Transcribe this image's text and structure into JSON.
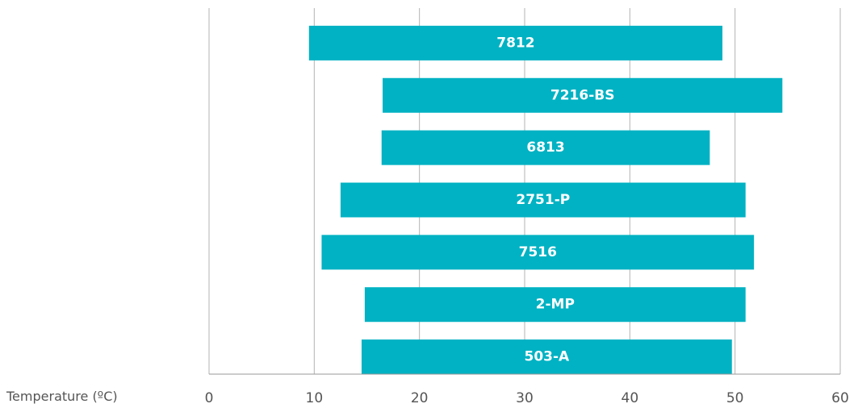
{
  "chart_data": {
    "type": "bar",
    "orientation": "horizontal-range",
    "xlabel": "Temperature (ºC)",
    "xlim": [
      0,
      60
    ],
    "xticks": [
      0,
      10,
      20,
      30,
      40,
      50,
      60
    ],
    "grid": true,
    "colors": {
      "bar": "#00b2c3",
      "grid": "#b3b3b3",
      "label": "#ffffff",
      "tick": "#555555"
    },
    "bars": [
      {
        "label": "7812",
        "start": 9.5,
        "end": 48.8
      },
      {
        "label": "7216-BS",
        "start": 16.5,
        "end": 54.5
      },
      {
        "label": "6813",
        "start": 16.4,
        "end": 47.6
      },
      {
        "label": "2751-P",
        "start": 12.5,
        "end": 51.0
      },
      {
        "label": "7516",
        "start": 10.7,
        "end": 51.8
      },
      {
        "label": "2-MP",
        "start": 14.8,
        "end": 51.0
      },
      {
        "label": "503-A",
        "start": 14.5,
        "end": 49.7
      }
    ]
  }
}
